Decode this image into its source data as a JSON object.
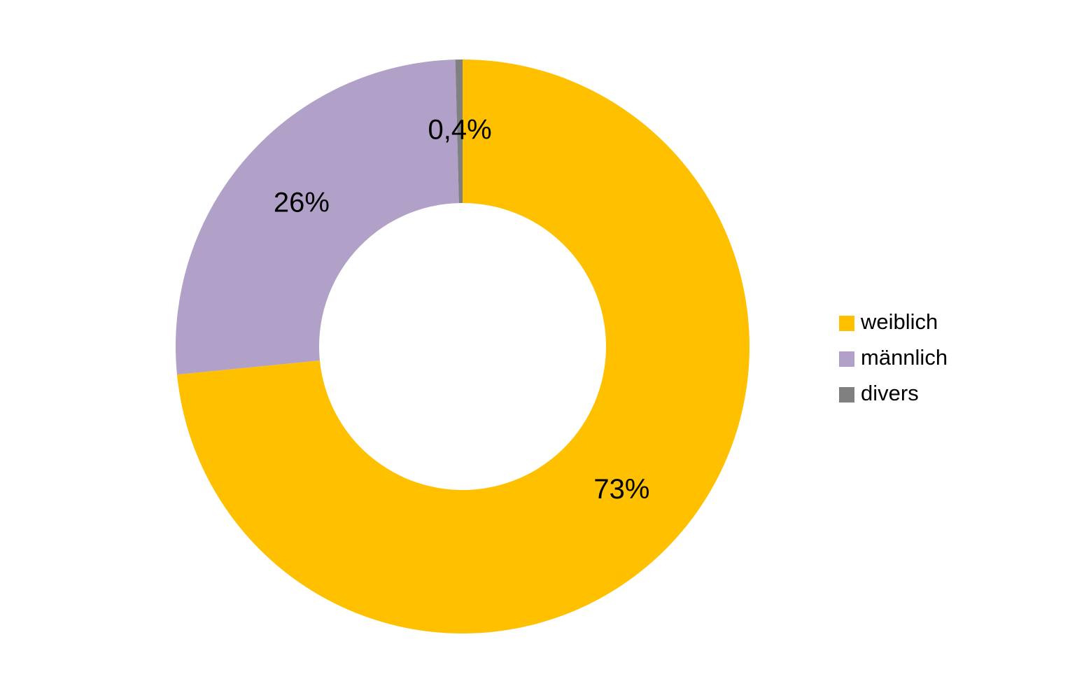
{
  "chart_data": {
    "type": "donut",
    "categories": [
      "weiblich",
      "männlich",
      "divers"
    ],
    "values": [
      73,
      26,
      0.4
    ],
    "value_labels": [
      "73%",
      "26%",
      "0,4%"
    ],
    "colors": [
      "#FFC000",
      "#B1A0C7",
      "#808080"
    ],
    "legend": "right"
  }
}
